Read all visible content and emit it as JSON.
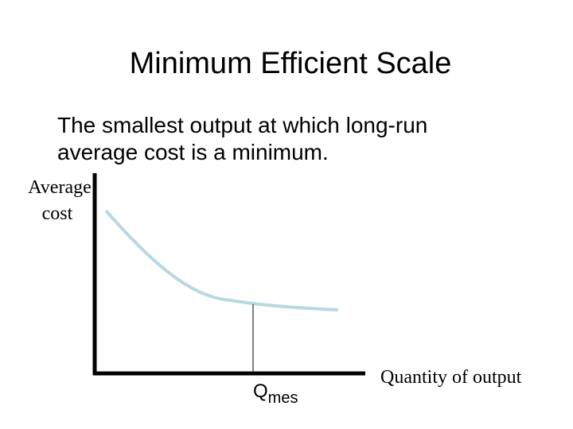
{
  "title": "Minimum Efficient Scale",
  "definition": [
    "The smallest output at which long-run",
    "average cost is a minimum."
  ],
  "y_axis_label": [
    "Average",
    "cost"
  ],
  "x_axis_label": "Quantity of output",
  "marker": {
    "label": "Q",
    "subscript": "mes"
  }
}
